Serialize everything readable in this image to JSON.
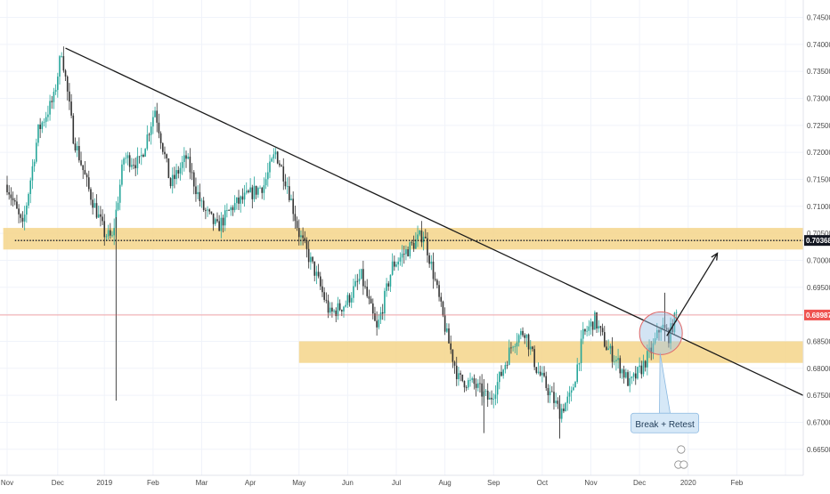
{
  "chart_data": {
    "type": "candlestick",
    "instrument": "",
    "colors": {
      "background": "#ffffff",
      "up": "#26a69a",
      "down": "#333333",
      "zone_fill": "#f5d58a",
      "trendline": "#1a1a1a",
      "current_price_line": "#ef5350",
      "current_price_tag": "#ef5350",
      "level_tag": "#131722",
      "circle_fill": "#9ec3e6",
      "circle_stroke": "#e06666",
      "callout_fill": "#d6e8f7",
      "callout_stroke": "#8ab8e0"
    },
    "y_axis": {
      "ticks": [
        "0.74500",
        "0.74000",
        "0.73500",
        "0.73000",
        "0.72500",
        "0.72000",
        "0.71500",
        "0.71000",
        "0.70500",
        "0.70000",
        "0.69500",
        "0.69000",
        "0.68500",
        "0.68000",
        "0.67500",
        "0.67000",
        "0.66500"
      ],
      "ylim": [
        0.6625,
        0.7475
      ],
      "position": "right"
    },
    "x_axis": {
      "ticks": [
        {
          "label": "Nov",
          "index": 0
        },
        {
          "label": "Dec",
          "index": 26
        },
        {
          "label": "2019",
          "index": 50
        },
        {
          "label": "Feb",
          "index": 75
        },
        {
          "label": "Mar",
          "index": 100
        },
        {
          "label": "Apr",
          "index": 125
        },
        {
          "label": "May",
          "index": 150
        },
        {
          "label": "Jun",
          "index": 175
        },
        {
          "label": "Jul",
          "index": 200
        },
        {
          "label": "Aug",
          "index": 225
        },
        {
          "label": "Sep",
          "index": 250
        },
        {
          "label": "Oct",
          "index": 275
        },
        {
          "label": "Nov",
          "index": 300
        },
        {
          "label": "Dec",
          "index": 325
        },
        {
          "label": "2020",
          "index": 350
        },
        {
          "label": "Feb",
          "index": 375
        },
        {
          "label": "",
          "index": 400
        }
      ]
    },
    "price_path": [
      [
        0,
        0.714
      ],
      [
        8,
        0.706
      ],
      [
        16,
        0.724
      ],
      [
        24,
        0.73
      ],
      [
        28,
        0.739
      ],
      [
        34,
        0.723
      ],
      [
        42,
        0.713
      ],
      [
        50,
        0.705
      ],
      [
        54,
        0.704
      ],
      [
        60,
        0.719
      ],
      [
        68,
        0.718
      ],
      [
        76,
        0.728
      ],
      [
        84,
        0.714
      ],
      [
        92,
        0.719
      ],
      [
        100,
        0.71
      ],
      [
        108,
        0.706
      ],
      [
        116,
        0.71
      ],
      [
        124,
        0.712
      ],
      [
        132,
        0.714
      ],
      [
        138,
        0.72
      ],
      [
        144,
        0.714
      ],
      [
        150,
        0.705
      ],
      [
        158,
        0.698
      ],
      [
        166,
        0.69
      ],
      [
        174,
        0.692
      ],
      [
        182,
        0.697
      ],
      [
        190,
        0.687
      ],
      [
        198,
        0.699
      ],
      [
        206,
        0.702
      ],
      [
        214,
        0.705
      ],
      [
        220,
        0.696
      ],
      [
        226,
        0.686
      ],
      [
        232,
        0.678
      ],
      [
        240,
        0.677
      ],
      [
        248,
        0.674
      ],
      [
        254,
        0.679
      ],
      [
        260,
        0.685
      ],
      [
        266,
        0.687
      ],
      [
        272,
        0.68
      ],
      [
        278,
        0.676
      ],
      [
        284,
        0.672
      ],
      [
        290,
        0.675
      ],
      [
        296,
        0.686
      ],
      [
        302,
        0.689
      ],
      [
        308,
        0.684
      ],
      [
        314,
        0.681
      ],
      [
        320,
        0.677
      ],
      [
        326,
        0.68
      ],
      [
        332,
        0.684
      ],
      [
        336,
        0.688
      ],
      [
        340,
        0.686
      ],
      [
        344,
        0.69
      ]
    ],
    "wick_spikes": [
      {
        "index": 56,
        "low": 0.674,
        "high": 0.708
      },
      {
        "index": 245,
        "low": 0.668,
        "high": 0.678
      },
      {
        "index": 284,
        "low": 0.667,
        "high": 0.675
      },
      {
        "index": 338,
        "low": 0.685,
        "high": 0.694
      }
    ],
    "zones": [
      {
        "from_index": -2,
        "to_index": 412,
        "low": 0.702,
        "high": 0.706
      },
      {
        "from_index": 150,
        "to_index": 412,
        "low": 0.681,
        "high": 0.685
      }
    ],
    "trendline": {
      "start": [
        30,
        0.7393
      ],
      "end": [
        412,
        0.6745
      ]
    },
    "breakout_arrow": {
      "start": [
        339,
        0.686
      ],
      "end": [
        365,
        0.7013
      ]
    },
    "dotted_level": {
      "value": 0.70368,
      "from_index": 4,
      "to_index": 410,
      "label": "0.70368"
    },
    "current_price": {
      "value": 0.68987,
      "label": "0.68987"
    },
    "highlight_circle": {
      "index": 336,
      "value": 0.6865
    },
    "annotation": {
      "text": "Break + Retest",
      "index": 338,
      "value": 0.6697
    }
  }
}
